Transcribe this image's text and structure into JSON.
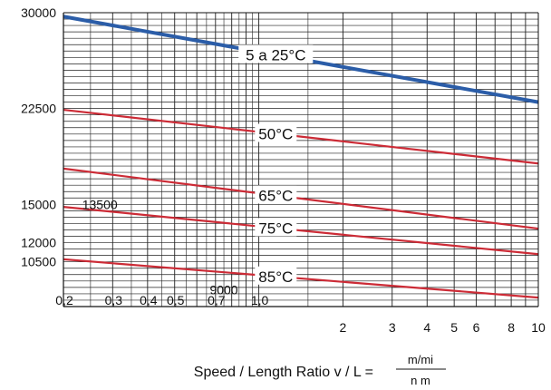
{
  "chart_data": {
    "type": "line",
    "title": "",
    "xlabel": "Speed / Length Ratio v / L =",
    "xlabel_fraction": {
      "numerator": "m/mi",
      "denominator": "n m"
    },
    "x_scale": "log",
    "xlim": [
      0.2,
      10
    ],
    "ylim": [
      7000,
      30000
    ],
    "grid": true,
    "legend": "none",
    "x_ticks": [
      {
        "value": 0.2,
        "label": "0,2"
      },
      {
        "value": 0.3,
        "label": "0,3"
      },
      {
        "value": 0.4,
        "label": "0,4"
      },
      {
        "value": 0.5,
        "label": "0,5"
      },
      {
        "value": 0.7,
        "label": "0,7"
      },
      {
        "value": 1,
        "label": "1,0"
      },
      {
        "value": 2,
        "label": "2"
      },
      {
        "value": 3,
        "label": "3"
      },
      {
        "value": 4,
        "label": "4"
      },
      {
        "value": 5,
        "label": "5"
      },
      {
        "value": 6,
        "label": "6"
      },
      {
        "value": 8,
        "label": "8"
      },
      {
        "value": 10,
        "label": "10"
      }
    ],
    "y_ticks": [
      {
        "value": 30000,
        "label": "30000"
      },
      {
        "value": 22500,
        "label": "22500"
      },
      {
        "value": 15000,
        "label": "15000"
      },
      {
        "value": 12000,
        "label": "12000"
      },
      {
        "value": 10500,
        "label": "10500"
      }
    ],
    "annotations": [
      {
        "text": "13500",
        "x": 0.27,
        "y": 15000
      },
      {
        "text": "9000",
        "x": 0.75,
        "y": 8300
      }
    ],
    "series": [
      {
        "name": "5 a 25°C",
        "color": "#2b5da8",
        "x": [
          0.2,
          10
        ],
        "y": [
          29700,
          23000
        ],
        "label_x": 1.15
      },
      {
        "name": "50°C",
        "color": "#cc2b36",
        "x": [
          0.2,
          10
        ],
        "y": [
          22400,
          18200
        ],
        "label_x": 1.15
      },
      {
        "name": "65°C",
        "color": "#cc2b36",
        "x": [
          0.2,
          10
        ],
        "y": [
          17800,
          13100
        ],
        "label_x": 1.15
      },
      {
        "name": "75°C",
        "color": "#cc2b36",
        "x": [
          0.2,
          10
        ],
        "y": [
          14800,
          11100
        ],
        "label_x": 1.15
      },
      {
        "name": "85°C",
        "color": "#cc2b36",
        "x": [
          0.2,
          10
        ],
        "y": [
          10700,
          7700
        ],
        "label_x": 1.15
      }
    ]
  }
}
